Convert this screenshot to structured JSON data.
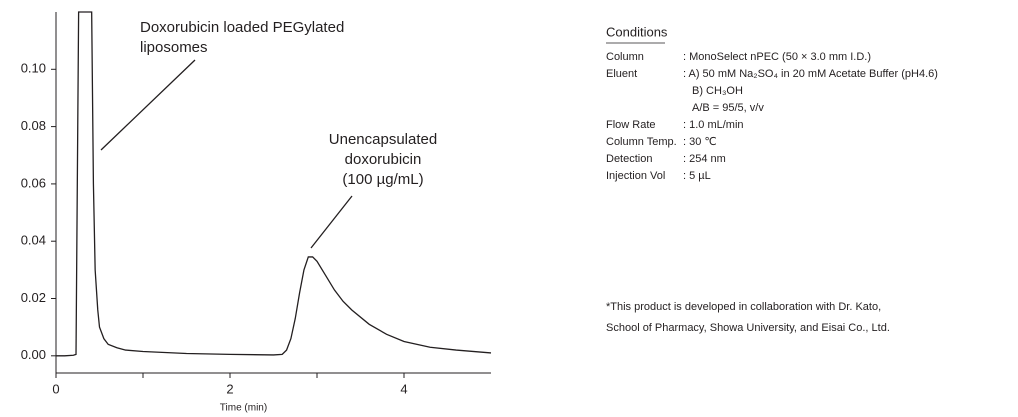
{
  "chart_data": {
    "type": "line",
    "x_label": "Time (min)",
    "x": [
      0,
      0.1,
      0.2,
      0.23,
      0.26,
      0.3,
      0.35,
      0.41,
      0.43,
      0.45,
      0.48,
      0.5,
      0.55,
      0.6,
      0.7,
      0.8,
      1.0,
      1.5,
      2.0,
      2.5,
      2.6,
      2.65,
      2.7,
      2.75,
      2.8,
      2.85,
      2.9,
      2.95,
      3.0,
      3.1,
      3.2,
      3.3,
      3.4,
      3.6,
      3.8,
      4.0,
      4.3,
      4.6,
      5.0
    ],
    "values": [
      0,
      0,
      0.0002,
      0.0005,
      0.12,
      0.12,
      0.12,
      0.12,
      0.06,
      0.03,
      0.016,
      0.01,
      0.006,
      0.004,
      0.0028,
      0.002,
      0.0015,
      0.0008,
      0.0005,
      0.0003,
      0.0005,
      0.002,
      0.006,
      0.013,
      0.022,
      0.03,
      0.0345,
      0.0345,
      0.033,
      0.028,
      0.023,
      0.019,
      0.016,
      0.011,
      0.0075,
      0.005,
      0.003,
      0.002,
      0.001
    ],
    "color": "#231f20",
    "xlim": [
      0,
      5
    ],
    "xticks": [
      0,
      2,
      4
    ],
    "xminorticks": [
      1,
      3
    ],
    "ylim": [
      -0.006,
      0.12
    ],
    "yticks": [
      {
        "value": 0,
        "label": "0.00"
      },
      {
        "value": 0.02,
        "label": "0.02"
      },
      {
        "value": 0.04,
        "label": "0.04"
      },
      {
        "value": 0.06,
        "label": "0.06"
      },
      {
        "value": 0.08,
        "label": "0.08"
      },
      {
        "value": 0.1,
        "label": "0.10"
      }
    ],
    "annotations": [
      {
        "lines": [
          "Doxorubicin loaded PEGylated",
          "liposomes"
        ]
      },
      {
        "lines": [
          "Unencapsulated",
          "doxorubicin",
          "(100 µg/mL)"
        ]
      }
    ]
  },
  "conditions": {
    "title": "Conditions",
    "rows": [
      {
        "label": "Column",
        "value": [
          ": MonoSelect nPEC (50 × 3.0 mm I.D.)"
        ]
      },
      {
        "label": "Eluent",
        "value": [
          ": A) 50 mM Na₂SO₄ in 20 mM Acetate Buffer (pH4.6)",
          "B) CH₃OH",
          "A/B = 95/5, v/v"
        ]
      },
      {
        "label": "Flow Rate",
        "value": [
          ": 1.0 mL/min"
        ]
      },
      {
        "label": "Column Temp.",
        "value": [
          ": 30 ℃"
        ]
      },
      {
        "label": "Detection",
        "value": [
          ": 254 nm"
        ]
      },
      {
        "label": "Injection Vol",
        "value": [
          ": 5 µL"
        ]
      }
    ],
    "note": [
      "*This product is developed in collaboration with Dr. Kato,",
      "School of Pharmacy, Showa University, and Eisai Co., Ltd."
    ]
  }
}
